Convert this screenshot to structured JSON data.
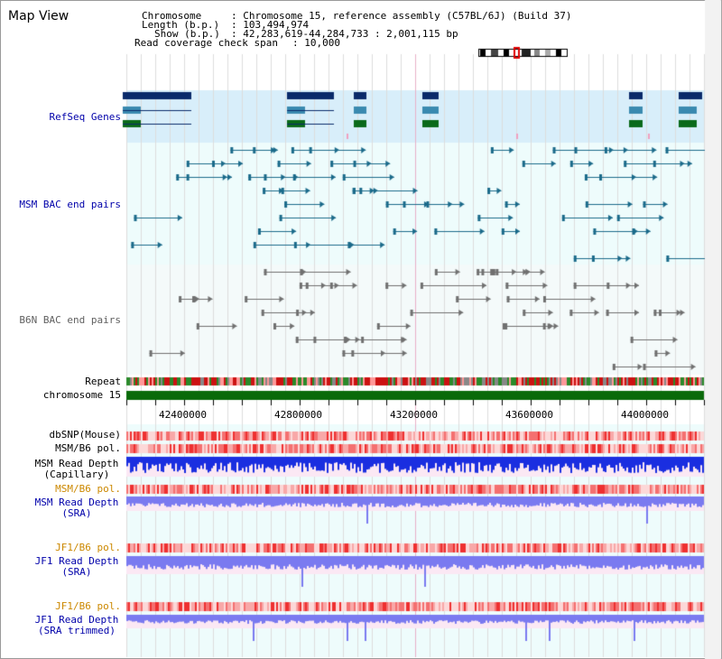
{
  "page": {
    "title": "Map View"
  },
  "header": {
    "chromosome_label": "Chromosome",
    "chromosome_value": ": Chromosome 15, reference assembly (C57BL/6J) (Build 37)",
    "length_label": "Length (b.p.)",
    "length_value": ": 103,494,974",
    "show_label": "Show (b.p.)",
    "show_value": ": 42,283,619-44,284,733 : 2,001,115 bp",
    "coverage_label": "Read coverage check span",
    "coverage_value": ": 10,000"
  },
  "tracks": {
    "refseq": "RefSeq Genes",
    "msm_bac": "MSM BAC end pairs",
    "b6n_bac": "B6N BAC end pairs",
    "repeat": "Repeat",
    "chromosome": "chromosome 15",
    "dbsnp": "dbSNP(Mouse)",
    "msm_b6_pol_1": "MSM/B6 pol.",
    "msm_read_depth_cap_1": "MSM Read Depth",
    "msm_read_depth_cap_2": "(Capillary)",
    "msm_b6_pol_2": "MSM/B6 pol.",
    "msm_read_depth_sra_1": "MSM Read Depth",
    "msm_read_depth_sra_2": "(SRA)",
    "jf1_b6_pol_1": "JF1/B6 pol.",
    "jf1_read_depth_sra_1": "JF1 Read Depth",
    "jf1_read_depth_sra_2": "(SRA)",
    "jf1_b6_pol_2": "JF1/B6 pol.",
    "jf1_read_depth_trim_1": "JF1 Read Depth",
    "jf1_read_depth_trim_2": "(SRA trimmed)"
  },
  "axis": {
    "ticks": [
      "42400000",
      "42800000",
      "43200000",
      "43600000",
      "44000000"
    ]
  },
  "colors": {
    "refseq_bg": "#d8eefa",
    "bac_bg": "#eefcfc",
    "gene_dark": "#0a2a6a",
    "gene_mid": "#3a8ab0",
    "gene_green": "#0a6a1a",
    "msm_bac": "#1a6a8a",
    "b6n_bac": "#707070",
    "chromosome": "#0a6a0a",
    "depth_cap": "#1a2ee0",
    "depth_sra": "#7a7af0"
  }
}
